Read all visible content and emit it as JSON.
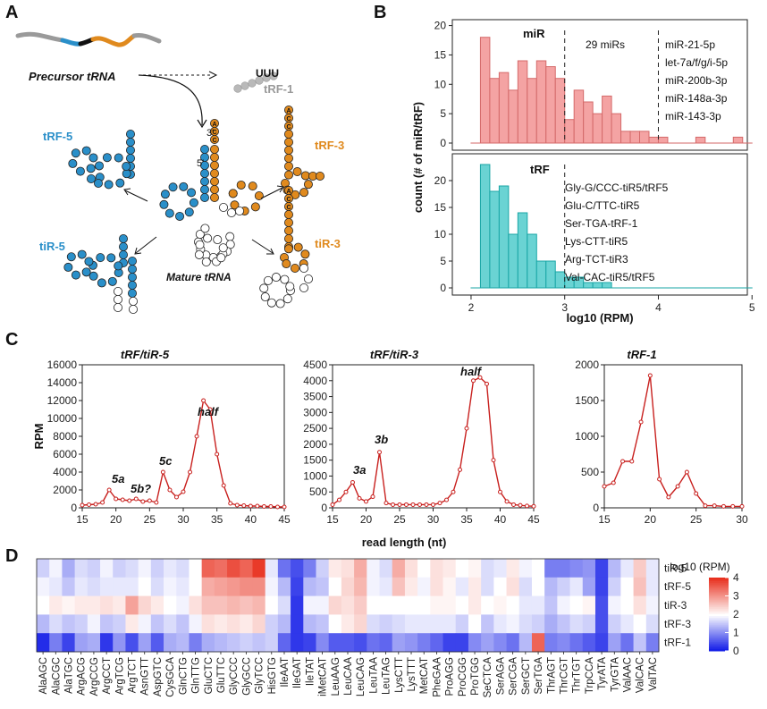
{
  "panels": {
    "A": "A",
    "B": "B",
    "C": "C",
    "D": "D"
  },
  "diagram": {
    "precursor_label": "Precursor tRNA",
    "trf1_label": "tRF-1",
    "uuu_label": "UUU",
    "mature_label": "Mature tRNA",
    "trf5_label": "tRF-5",
    "tir5_label": "tiR-5",
    "trf3_label": "tRF-3",
    "tir3_label": "tiR-3",
    "end3_label": "3'",
    "end5_label": "5'",
    "cca": [
      "A",
      "C",
      "C"
    ],
    "colors": {
      "blue": "#2a8fc9",
      "orange": "#e08a1e",
      "gray": "#b9b9b9"
    }
  },
  "chart_data": [
    {
      "id": "B-miR",
      "type": "bar",
      "subtype": "histogram",
      "title": "miR",
      "count_text": "29 miRs",
      "bin_start": 2.0,
      "bin_width": 0.1,
      "counts": [
        0,
        18,
        11,
        12,
        9,
        14,
        11,
        14,
        13,
        11,
        4,
        9,
        7,
        5,
        8,
        5,
        2,
        2,
        2,
        1,
        1,
        0,
        0,
        0,
        1,
        0,
        0,
        0,
        1,
        0
      ],
      "color_fill": "#f4a3a3",
      "color_edge": "#d46a6a",
      "ylim": [
        0,
        21
      ],
      "yticks": [
        0,
        5,
        10,
        15,
        20
      ],
      "vlines": [
        3,
        4
      ],
      "annotations": [
        "miR-21-5p",
        "let-7a/f/g/i-5p",
        "miR-200b-3p",
        "miR-148a-3p",
        "miR-143-3p"
      ]
    },
    {
      "id": "B-tRF",
      "type": "bar",
      "subtype": "histogram",
      "title": "tRF",
      "bin_start": 2.0,
      "bin_width": 0.1,
      "counts": [
        0,
        23,
        18,
        19,
        10,
        14,
        10,
        5,
        5,
        3,
        2,
        2,
        1,
        1,
        1,
        0,
        0,
        0,
        0,
        0,
        0,
        0,
        0,
        0,
        0,
        0,
        0,
        0,
        0,
        0
      ],
      "color_fill": "#6ad3d3",
      "color_edge": "#1aa6a6",
      "ylim": [
        0,
        25
      ],
      "yticks": [
        0,
        5,
        10,
        15,
        20
      ],
      "vlines": [
        3
      ],
      "annotations": [
        "Gly-G/CCC-tiR5/tRF5",
        "Glu-C/TTC-tiR5",
        "Ser-TGA-tRF-1",
        "Lys-CTT-tiR5",
        "Arg-TCT-tiR3",
        "Val-CAC-tiR5/tRF5"
      ]
    },
    {
      "id": "B-axes",
      "xlabel": "log10 (RPM)",
      "ylabel": "count (# of miR/tRF)",
      "xlim": [
        1.8,
        4.95
      ],
      "xticks": [
        2,
        3,
        4,
        5
      ]
    },
    {
      "id": "C1",
      "type": "line",
      "title": "tRF/tiR-5",
      "x": [
        15,
        16,
        17,
        18,
        19,
        20,
        21,
        22,
        23,
        24,
        25,
        26,
        27,
        28,
        29,
        30,
        31,
        32,
        33,
        34,
        35,
        36,
        37,
        38,
        39,
        40,
        41,
        42,
        43,
        44,
        45
      ],
      "y": [
        300,
        350,
        400,
        600,
        2000,
        1000,
        900,
        800,
        1000,
        700,
        800,
        600,
        4000,
        2000,
        1200,
        1800,
        4000,
        8000,
        12000,
        11000,
        6000,
        2500,
        500,
        300,
        250,
        200,
        200,
        150,
        150,
        100,
        100
      ],
      "xlim": [
        15,
        45
      ],
      "ylim": [
        0,
        16000
      ],
      "xticks": [
        15,
        20,
        25,
        30,
        35,
        40,
        45
      ],
      "yticks": [
        0,
        2000,
        4000,
        6000,
        8000,
        10000,
        12000,
        14000,
        16000
      ],
      "peak_labels": [
        "5a",
        "5b?",
        "5c",
        "half"
      ],
      "ylabel": "RPM",
      "color": "#c8201e"
    },
    {
      "id": "C2",
      "type": "line",
      "title": "tRF/tiR-3",
      "x": [
        15,
        16,
        17,
        18,
        19,
        20,
        21,
        22,
        23,
        24,
        25,
        26,
        27,
        28,
        29,
        30,
        31,
        32,
        33,
        34,
        35,
        36,
        37,
        38,
        39,
        40,
        41,
        42,
        43,
        44,
        45
      ],
      "y": [
        100,
        250,
        500,
        800,
        300,
        200,
        350,
        1750,
        150,
        100,
        100,
        100,
        100,
        100,
        100,
        100,
        150,
        250,
        500,
        1200,
        2500,
        4000,
        4100,
        3900,
        1500,
        500,
        200,
        100,
        80,
        60,
        50
      ],
      "xlim": [
        15,
        45
      ],
      "ylim": [
        0,
        4500
      ],
      "xticks": [
        15,
        20,
        25,
        30,
        35,
        40,
        45
      ],
      "yticks": [
        0,
        500,
        1000,
        1500,
        2000,
        2500,
        3000,
        3500,
        4000,
        4500
      ],
      "peak_labels": [
        "3a",
        "3b",
        "half"
      ],
      "color": "#c8201e"
    },
    {
      "id": "C3",
      "type": "line",
      "title": "tRF-1",
      "x": [
        15,
        16,
        17,
        18,
        19,
        20,
        21,
        22,
        23,
        24,
        25,
        26,
        27,
        28,
        29,
        30
      ],
      "y": [
        300,
        350,
        650,
        650,
        1200,
        1850,
        400,
        150,
        300,
        500,
        200,
        30,
        30,
        20,
        20,
        20
      ],
      "xlim": [
        15,
        30
      ],
      "ylim": [
        0,
        2000
      ],
      "xticks": [
        15,
        20,
        25,
        30
      ],
      "yticks": [
        0,
        500,
        1000,
        1500,
        2000
      ],
      "color": "#c8201e"
    },
    {
      "id": "C-axes",
      "xlabel": "read length (nt)"
    },
    {
      "id": "D",
      "type": "heatmap",
      "rows": [
        "tiR-5",
        "tRF-5",
        "tiR-3",
        "tRF-3",
        "tRF-1"
      ],
      "columns": [
        "AlaAGC",
        "AlaCGC",
        "AlaTGC",
        "ArgACG",
        "ArgCCG",
        "ArgCCT",
        "ArgTCG",
        "ArgTCT",
        "AsnGTT",
        "AspGTC",
        "CysGCA",
        "GlnCTG",
        "GlnTTG",
        "GluCTC",
        "GluTTC",
        "GlyCCC",
        "GlyGCC",
        "GlyTCC",
        "HisGTG",
        "IleAAT",
        "IleGAT",
        "IleTAT",
        "iMetCAT",
        "LeuAAG",
        "LeuCAA",
        "LeuCAG",
        "LeuTAA",
        "LeuTAG",
        "LysCTT",
        "LysTTT",
        "MetCAT",
        "PheGAA",
        "ProAGG",
        "ProCGG",
        "ProTGG",
        "SeCTCA",
        "SerAGA",
        "SerCGA",
        "SerGCT",
        "SerTGA",
        "ThrAGT",
        "ThrCGT",
        "ThrTGT",
        "TrpCCA",
        "TyrATA",
        "TyrGTA",
        "ValAAC",
        "ValCAC",
        "ValTAC"
      ],
      "values": [
        [
          1.6,
          1.9,
          1.3,
          1.7,
          1.6,
          1.9,
          1.6,
          1.7,
          1.9,
          1.6,
          1.8,
          1.7,
          2.0,
          3.5,
          3.4,
          3.7,
          3.5,
          3.9,
          1.8,
          0.8,
          0.5,
          0.9,
          1.6,
          2.2,
          2.3,
          2.8,
          1.9,
          1.7,
          2.8,
          2.3,
          2.0,
          2.3,
          2.2,
          2.0,
          2.1,
          1.7,
          1.8,
          2.2,
          1.9,
          2.0,
          0.9,
          0.9,
          1.0,
          1.1,
          0.4,
          1.4,
          1.8,
          2.5,
          1.8
        ],
        [
          1.9,
          1.8,
          1.5,
          1.8,
          1.7,
          1.8,
          1.8,
          1.8,
          2.0,
          1.7,
          1.9,
          1.8,
          2.0,
          2.8,
          2.9,
          3.0,
          3.1,
          3.1,
          1.9,
          1.4,
          0.4,
          1.4,
          1.5,
          2.0,
          2.4,
          2.7,
          1.9,
          1.8,
          2.6,
          2.2,
          1.9,
          2.3,
          2.1,
          1.8,
          2.2,
          1.7,
          2.0,
          2.3,
          1.7,
          2.0,
          1.4,
          1.6,
          1.8,
          1.2,
          0.4,
          1.6,
          2.0,
          2.6,
          1.8
        ],
        [
          2.0,
          2.2,
          2.1,
          2.2,
          2.2,
          2.3,
          2.2,
          2.9,
          2.4,
          2.2,
          2.0,
          1.9,
          2.3,
          2.6,
          2.6,
          2.7,
          2.6,
          2.7,
          2.0,
          1.7,
          0.3,
          1.9,
          1.9,
          2.4,
          2.3,
          2.5,
          2.0,
          2.0,
          2.0,
          2.0,
          2.0,
          2.1,
          2.1,
          2.0,
          2.2,
          2.0,
          2.1,
          2.0,
          1.8,
          1.8,
          1.5,
          1.9,
          2.0,
          2.1,
          0.5,
          1.9,
          2.0,
          2.3,
          1.9
        ],
        [
          1.4,
          1.7,
          1.5,
          1.6,
          1.9,
          1.5,
          1.6,
          2.2,
          1.9,
          1.5,
          1.7,
          1.5,
          1.9,
          2.3,
          2.2,
          2.3,
          2.2,
          2.4,
          1.6,
          1.4,
          0.3,
          1.4,
          1.5,
          2.0,
          2.2,
          2.4,
          1.7,
          1.6,
          1.7,
          1.8,
          1.8,
          1.8,
          1.8,
          1.6,
          2.0,
          1.5,
          1.8,
          1.9,
          1.7,
          1.6,
          1.3,
          1.5,
          1.7,
          1.6,
          0.5,
          1.6,
          1.8,
          2.0,
          1.7
        ],
        [
          0.2,
          0.9,
          0.4,
          1.2,
          1.3,
          0.3,
          1.1,
          0.5,
          1.2,
          0.6,
          1.3,
          1.4,
          0.9,
          1.3,
          1.4,
          1.5,
          1.6,
          1.5,
          1.6,
          0.7,
          0.3,
          0.4,
          1.0,
          0.6,
          0.6,
          0.5,
          0.8,
          0.7,
          1.2,
          1.1,
          0.9,
          0.7,
          0.4,
          0.4,
          1.0,
          1.2,
          1.0,
          0.8,
          1.4,
          3.5,
          0.9,
          1.0,
          0.8,
          0.6,
          0.4,
          1.2,
          0.8,
          1.5,
          0.9
        ]
      ],
      "colorbar_title": "log10 (RPM)",
      "colorbar_ticks": [
        0,
        1,
        2,
        3,
        4
      ],
      "vmin": 0,
      "vmax": 4,
      "colors": {
        "low": "#0a14e6",
        "mid": "#ffffff",
        "high": "#e8301e"
      }
    }
  ]
}
